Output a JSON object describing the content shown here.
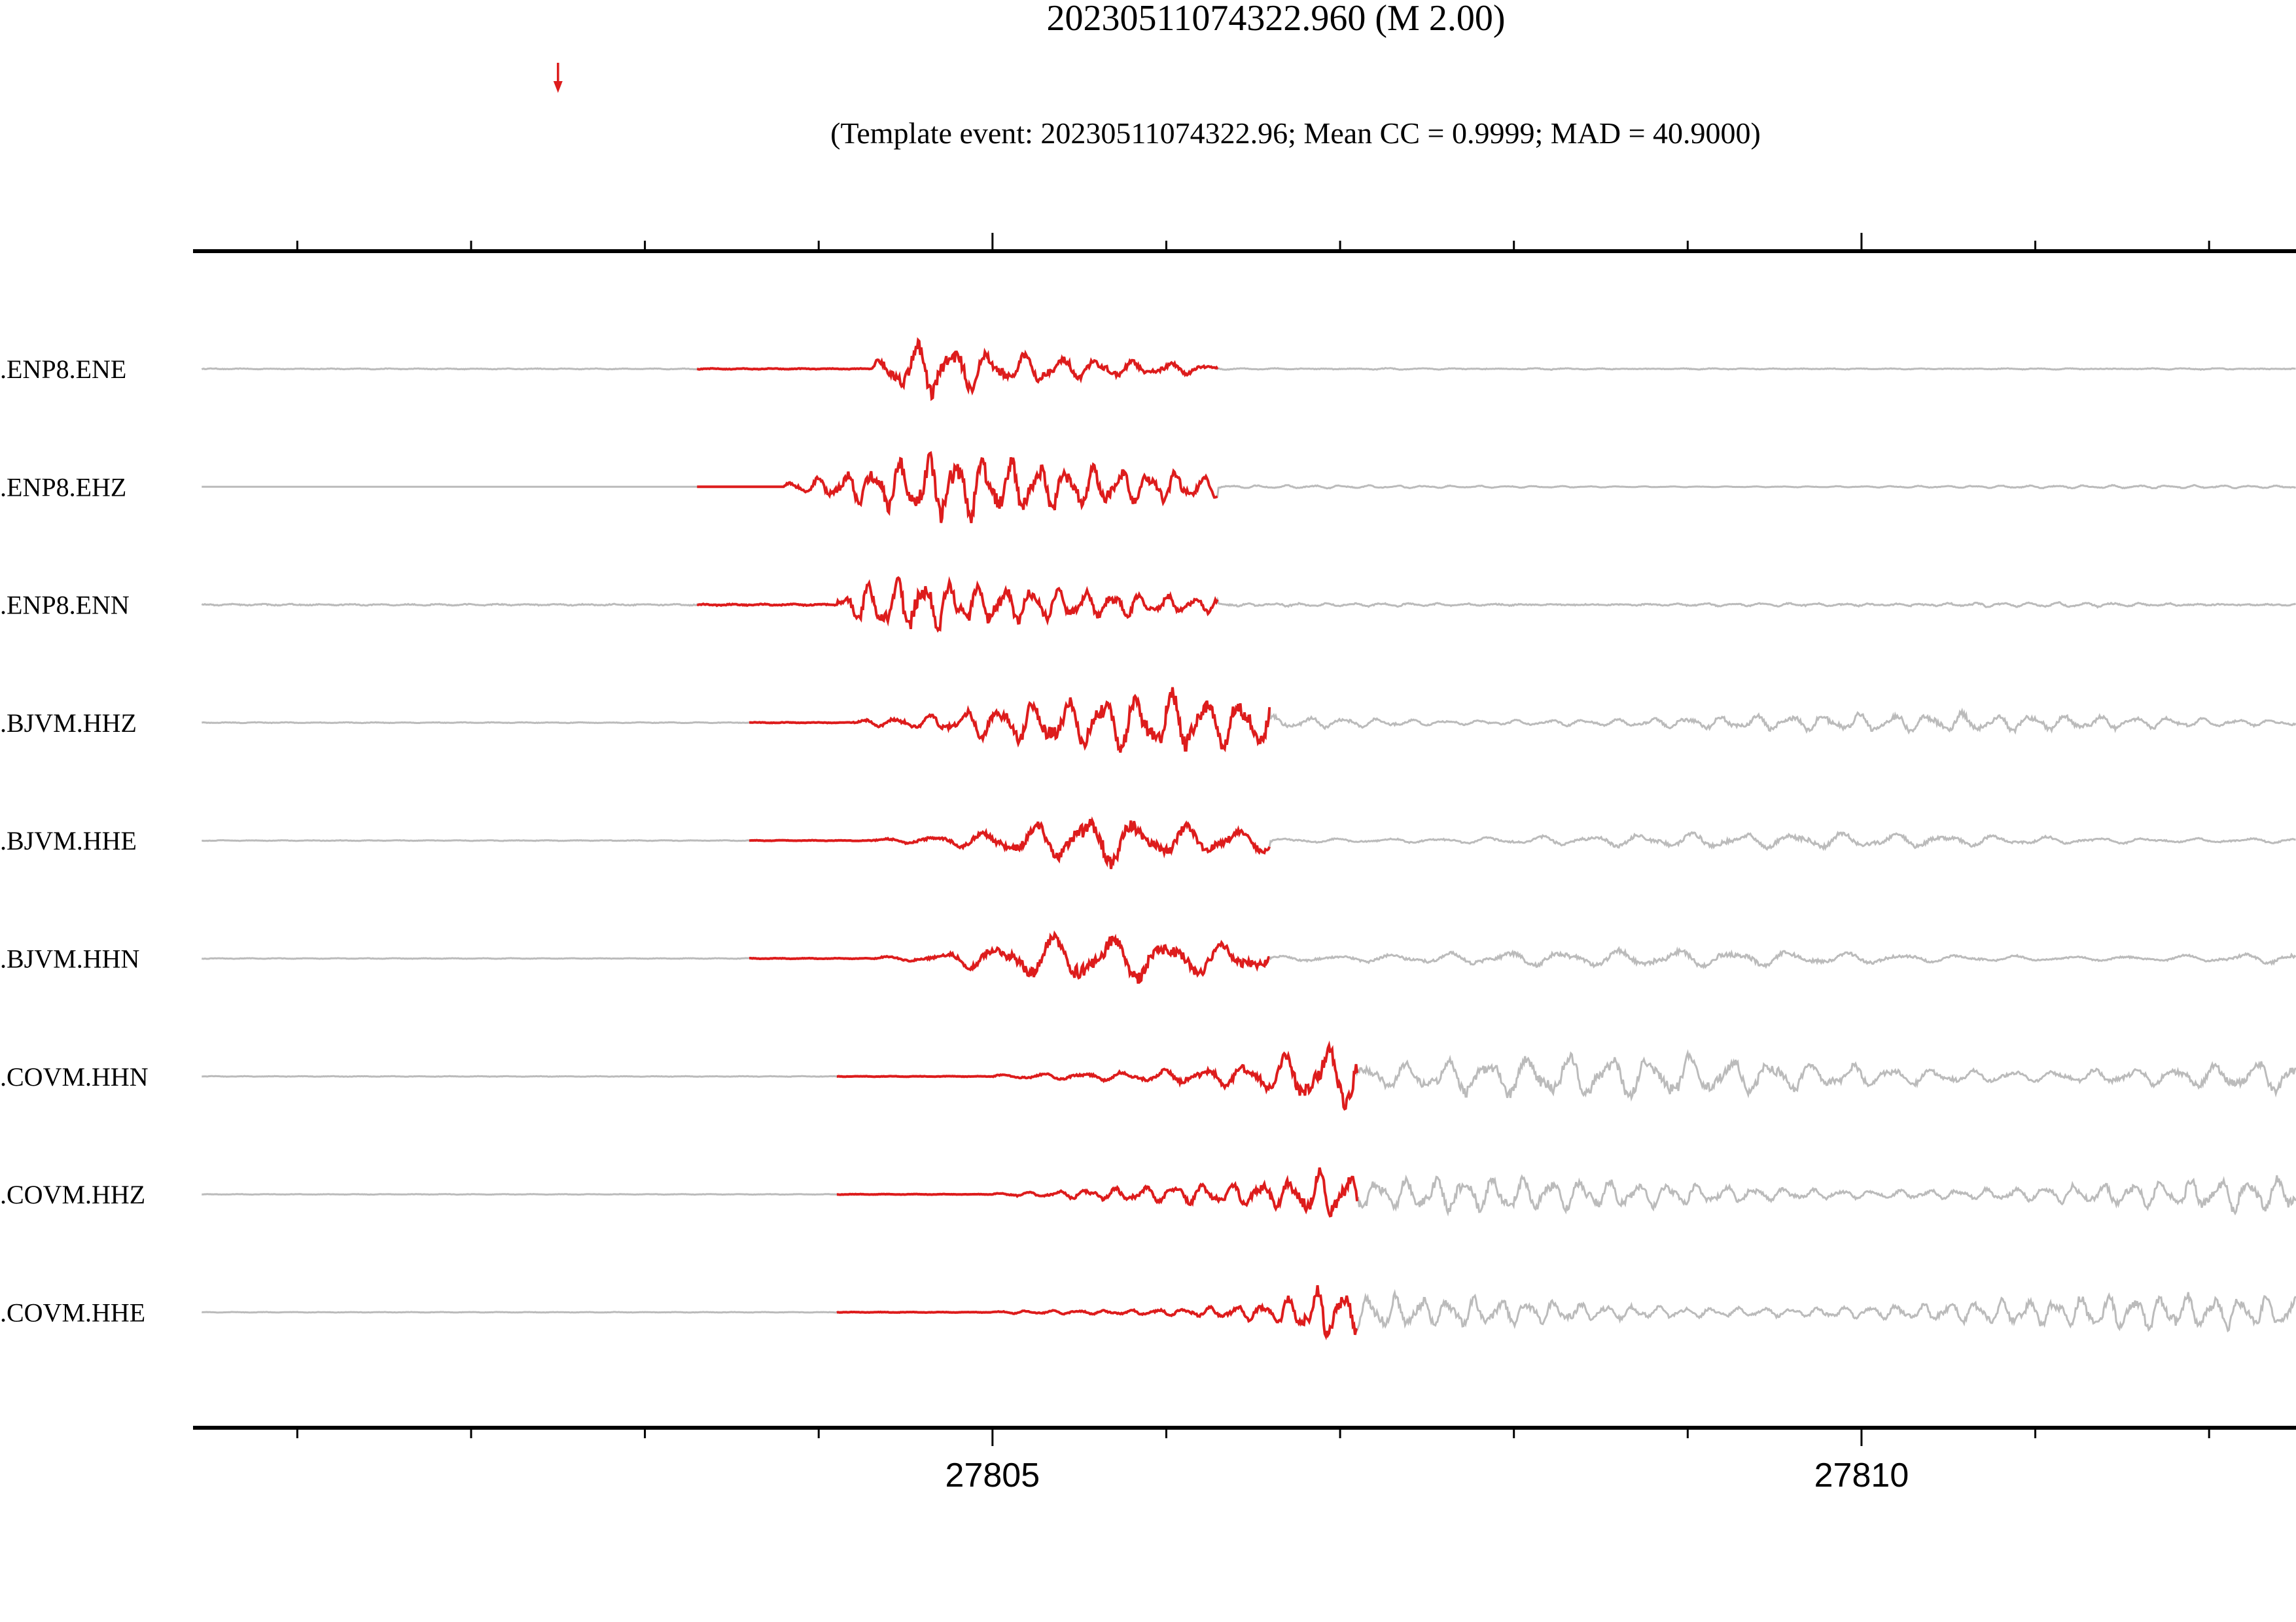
{
  "chart_data": {
    "type": "line",
    "title": "20230511074322.960 (M 2.00)",
    "subtitle": "(Template event: 20230511074322.96; Mean CC = 0.9999; MAD = 40.9000)",
    "xlabel": "",
    "ylabel": "",
    "xlim": [
      27800.4,
      27812.5
    ],
    "x_ticks": [
      27805,
      27810
    ],
    "x_minor_step": 1,
    "grid": false,
    "legend": "none",
    "marker_time": 27802.5,
    "colors": {
      "trace": "#bbbbbb",
      "template": "#dd1c1c",
      "axis": "#000000",
      "marker": "#dd1c1c"
    },
    "series": [
      {
        "label": ".ENP8.ENE",
        "template_start": 27803.3,
        "template_end": 27806.3,
        "amp": 0.55,
        "noise": 0.02,
        "onset": 27804.3,
        "coda": 0.012,
        "pattern": [
          0.2,
          0.9,
          1.0,
          0.8,
          0.5,
          0.55,
          0.45,
          0.35,
          0.3,
          0.25,
          0.2,
          0.15
        ]
      },
      {
        "label": ".ENP8.EHZ",
        "template_start": 27803.3,
        "template_end": 27806.3,
        "amp": 0.65,
        "noise": 0.0,
        "onset": 27803.8,
        "coda": 0.03,
        "pattern": [
          0.15,
          0.3,
          0.55,
          0.85,
          1.0,
          0.95,
          0.8,
          0.7,
          0.6,
          0.5,
          0.45,
          0.35
        ]
      },
      {
        "label": ".ENP8.ENN",
        "template_start": 27803.3,
        "template_end": 27806.3,
        "amp": 0.6,
        "noise": 0.03,
        "onset": 27804.1,
        "coda": 0.04,
        "pattern": [
          0.2,
          0.85,
          1.0,
          0.85,
          0.7,
          0.6,
          0.55,
          0.45,
          0.4,
          0.35,
          0.3,
          0.25
        ]
      },
      {
        "label": ".BJVM.HHZ",
        "template_start": 27803.6,
        "template_end": 27806.6,
        "amp": 0.62,
        "noise": 0.015,
        "onset": 27804.2,
        "coda": 0.2,
        "pattern": [
          0.1,
          0.15,
          0.25,
          0.4,
          0.6,
          0.75,
          0.8,
          0.9,
          1.0,
          0.9,
          0.8,
          0.85
        ]
      },
      {
        "label": ".BJVM.HHE",
        "template_start": 27803.6,
        "template_end": 27806.6,
        "amp": 0.55,
        "noise": 0.015,
        "onset": 27804.3,
        "coda": 0.18,
        "pattern": [
          0.05,
          0.1,
          0.2,
          0.3,
          0.5,
          0.7,
          1.0,
          0.8,
          0.6,
          0.5,
          0.45,
          0.4
        ]
      },
      {
        "label": ".BJVM.HHN",
        "template_start": 27803.6,
        "template_end": 27806.6,
        "amp": 0.55,
        "noise": 0.015,
        "onset": 27804.3,
        "coda": 0.2,
        "pattern": [
          0.05,
          0.1,
          0.2,
          0.4,
          0.6,
          0.8,
          1.0,
          0.85,
          0.7,
          0.6,
          0.5,
          0.45
        ]
      },
      {
        "label": ".COVM.HHN",
        "template_start": 27804.1,
        "template_end": 27807.1,
        "amp": 0.62,
        "noise": 0.012,
        "onset": 27805.0,
        "coda": 0.45,
        "pattern": [
          0.05,
          0.08,
          0.1,
          0.12,
          0.15,
          0.2,
          0.25,
          0.3,
          0.45,
          0.7,
          1.0,
          0.9
        ]
      },
      {
        "label": ".COVM.HHZ",
        "template_start": 27804.1,
        "template_end": 27807.1,
        "amp": 0.55,
        "noise": 0.012,
        "onset": 27805.0,
        "coda": 0.4,
        "pattern": [
          0.05,
          0.08,
          0.12,
          0.2,
          0.25,
          0.3,
          0.35,
          0.35,
          0.45,
          0.6,
          1.0,
          0.7
        ]
      },
      {
        "label": ".COVM.HHE",
        "template_start": 27804.1,
        "template_end": 27807.1,
        "amp": 0.55,
        "noise": 0.012,
        "onset": 27805.0,
        "coda": 0.4,
        "pattern": [
          0.03,
          0.05,
          0.07,
          0.08,
          0.1,
          0.12,
          0.15,
          0.2,
          0.3,
          0.6,
          1.0,
          0.8
        ]
      }
    ]
  }
}
